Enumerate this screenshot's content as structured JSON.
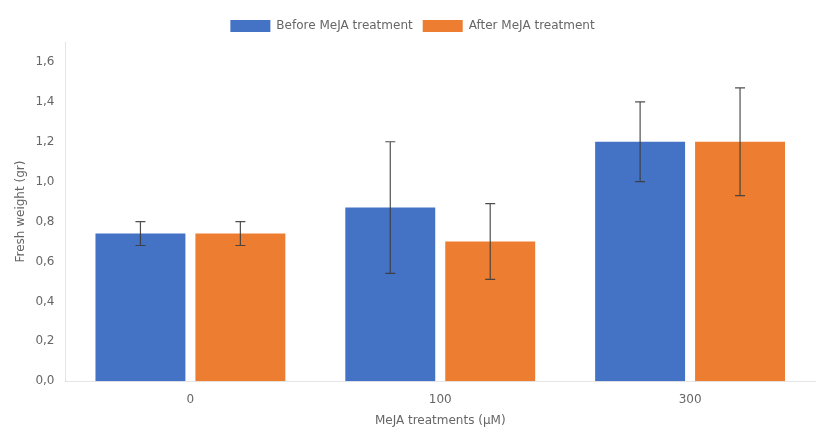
{
  "chart_data": {
    "type": "bar",
    "categories": [
      "0",
      "100",
      "300"
    ],
    "series": [
      {
        "name": "Before MeJA treatment",
        "color": "#4472C4",
        "values": [
          0.74,
          0.87,
          1.2
        ],
        "errors": [
          0.06,
          0.33,
          0.2
        ]
      },
      {
        "name": "After MeJA treatment",
        "color": "#ED7D31",
        "values": [
          0.74,
          0.7,
          1.2
        ],
        "errors": [
          0.06,
          0.19,
          0.27
        ]
      }
    ],
    "xlabel": "MeJA treatments (μM)",
    "ylabel": "Fresh weight (gr)",
    "ylim": [
      0,
      1.7
    ],
    "yticks": [
      {
        "value": 0.0,
        "label": "0,0"
      },
      {
        "value": 0.2,
        "label": "0,2"
      },
      {
        "value": 0.4,
        "label": "0,4"
      },
      {
        "value": 0.6,
        "label": "0,6"
      },
      {
        "value": 0.8,
        "label": "0,8"
      },
      {
        "value": 1.0,
        "label": "1,0"
      },
      {
        "value": 1.2,
        "label": "1,2"
      },
      {
        "value": 1.4,
        "label": "1,4"
      },
      {
        "value": 1.6,
        "label": "1,6"
      }
    ],
    "grid": false,
    "legend": "top"
  }
}
